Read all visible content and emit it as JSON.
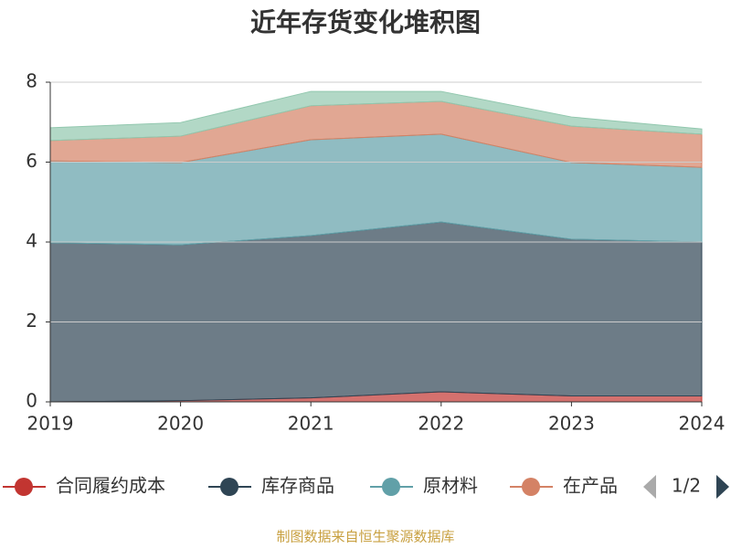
{
  "chart_data": {
    "type": "stacked_area",
    "title": "近年存货变化堆积图",
    "categories": [
      "2019",
      "2020",
      "2021",
      "2022",
      "2023",
      "2024"
    ],
    "series": [
      {
        "name": "合同履约成本",
        "color": "#c23531",
        "values": [
          0,
          0.03,
          0.1,
          0.25,
          0.15,
          0.15
        ]
      },
      {
        "name": "库存商品",
        "color": "#2f4554",
        "values": [
          3.98,
          3.9,
          4.06,
          4.25,
          3.92,
          3.85
        ]
      },
      {
        "name": "原材料",
        "color": "#61a0a8",
        "values": [
          2.05,
          2.06,
          2.4,
          2.2,
          1.92,
          1.87
        ]
      },
      {
        "name": "在产品",
        "color": "#d48265",
        "values": [
          0.51,
          0.66,
          0.85,
          0.82,
          0.91,
          0.83
        ]
      },
      {
        "color": "#91c7ae",
        "values": [
          0.32,
          0.34,
          0.36,
          0.25,
          0.23,
          0.13
        ]
      }
    ],
    "ylim": [
      0,
      8
    ],
    "yticks": [
      0,
      2,
      4,
      6,
      8
    ],
    "grid": true,
    "legend_page": "1/2",
    "source": "制图数据来自恒生聚源数据库"
  }
}
